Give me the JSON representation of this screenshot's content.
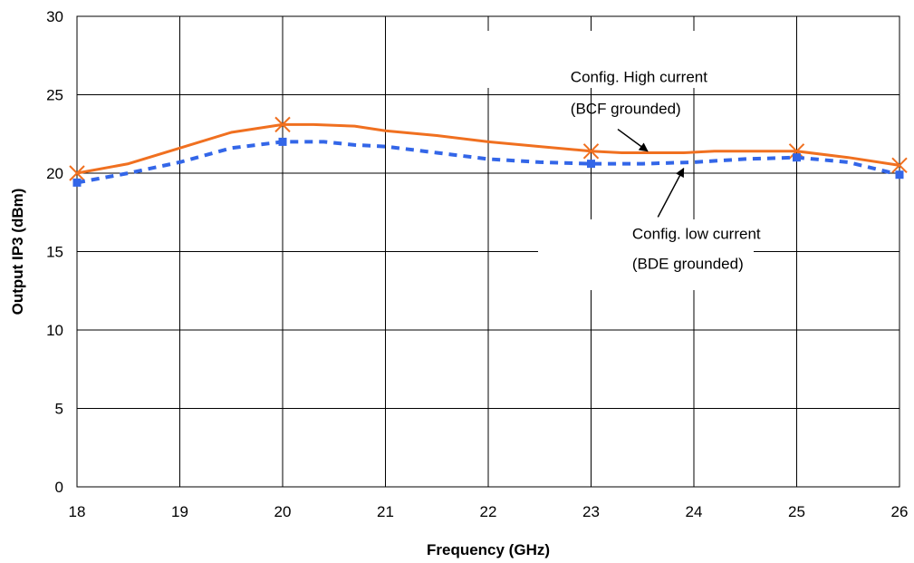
{
  "chart_data": {
    "type": "line",
    "xlabel": "Frequency (GHz)",
    "ylabel": "Output IP3 (dBm)",
    "xlim": [
      18,
      26
    ],
    "ylim": [
      0,
      30
    ],
    "x_ticks": [
      "18",
      "19",
      "20",
      "21",
      "22",
      "23",
      "24",
      "25",
      "26"
    ],
    "y_ticks": [
      "0",
      "5",
      "10",
      "15",
      "20",
      "25",
      "30"
    ],
    "grid": true,
    "series": [
      {
        "style": "solid",
        "color": "#f07020",
        "marker": "x",
        "markers_x": [
          18,
          20,
          23,
          25,
          26
        ],
        "markers_y": [
          20.0,
          23.1,
          21.4,
          21.4,
          20.5
        ],
        "x": [
          18,
          18.5,
          19,
          19.5,
          20,
          20.3,
          20.7,
          21,
          21.5,
          22,
          22.5,
          23,
          23.3,
          23.6,
          23.9,
          24.2,
          24.5,
          25,
          25.5,
          26
        ],
        "y": [
          20.0,
          20.6,
          21.6,
          22.6,
          23.1,
          23.1,
          23.0,
          22.7,
          22.4,
          22.0,
          21.7,
          21.4,
          21.3,
          21.3,
          21.3,
          21.4,
          21.4,
          21.4,
          21.0,
          20.5
        ]
      },
      {
        "style": "dashed",
        "color": "#3366e8",
        "marker": "square",
        "markers_x": [
          18,
          20,
          23,
          25,
          26
        ],
        "markers_y": [
          19.4,
          22.0,
          20.6,
          21.0,
          19.9
        ],
        "x": [
          18,
          18.5,
          19,
          19.5,
          20,
          20.4,
          20.7,
          21,
          21.5,
          22,
          22.5,
          23,
          23.5,
          24,
          24.5,
          25,
          25.5,
          26
        ],
        "y": [
          19.4,
          20.0,
          20.7,
          21.6,
          22.0,
          22.0,
          21.8,
          21.7,
          21.3,
          20.9,
          20.7,
          20.6,
          20.6,
          20.7,
          20.9,
          21.0,
          20.7,
          19.9
        ]
      }
    ],
    "annotations": [
      {
        "id": "high",
        "lines": [
          "Config. High current",
          "(BCF grounded)"
        ],
        "text_x": 22.8,
        "text_y": [
          25.8,
          23.8
        ],
        "arrow_from": [
          23.26,
          22.8
        ],
        "arrow_to": [
          23.55,
          21.4
        ]
      },
      {
        "id": "low",
        "lines": [
          "Config. low current",
          "(BDE grounded)"
        ],
        "text_x": 23.4,
        "text_y": [
          15.8,
          13.9
        ],
        "arrow_from": [
          23.65,
          17.2
        ],
        "arrow_to": [
          23.9,
          20.3
        ]
      }
    ]
  }
}
